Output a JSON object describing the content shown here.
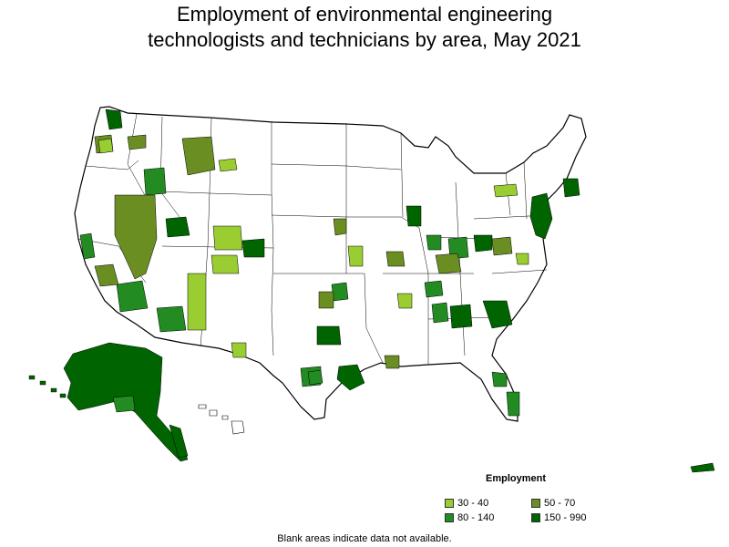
{
  "title_line1": "Employment of environmental engineering",
  "title_line2": "technologists and technicians by area, May 2021",
  "legend": {
    "title": "Employment",
    "items": [
      {
        "label": "30 - 40",
        "color": "#9acd32"
      },
      {
        "label": "50 - 70",
        "color": "#6b8e23"
      },
      {
        "label": "80 - 140",
        "color": "#228b22"
      },
      {
        "label": "150 - 990",
        "color": "#006400"
      }
    ]
  },
  "note": "Blank areas indicate data not available.",
  "colors": {
    "border": "#000000",
    "blank": "#ffffff"
  }
}
